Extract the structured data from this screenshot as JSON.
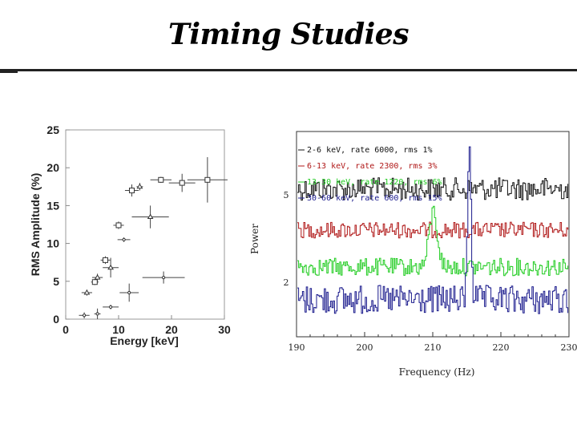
{
  "page": {
    "title": "Timing  Studies"
  },
  "chart_data": [
    {
      "type": "scatter",
      "xlabel": "Energy [keV]",
      "ylabel": "RMS Amplitude (%)",
      "xlim": [
        0,
        30
      ],
      "ylim": [
        0,
        25
      ],
      "xticks": [
        0,
        10,
        20,
        30
      ],
      "yticks": [
        0,
        5,
        10,
        15,
        20,
        25
      ],
      "grid": false,
      "series": [
        {
          "marker": "open-square",
          "points": [
            {
              "x": 5.5,
              "y": 4.9,
              "xerr": 0.7,
              "yerr": 0.4
            },
            {
              "x": 7.5,
              "y": 7.8,
              "xerr": 0.9,
              "yerr": 0.5
            },
            {
              "x": 10,
              "y": 12.4,
              "xerr": 1.0,
              "yerr": 0.5
            },
            {
              "x": 12.5,
              "y": 17.0,
              "xerr": 1.3,
              "yerr": 0.8
            },
            {
              "x": 18,
              "y": 18.4,
              "xerr": 2.0,
              "yerr": 0.4
            },
            {
              "x": 22,
              "y": 18.0,
              "xerr": 2.5,
              "yerr": 1.2
            },
            {
              "x": 26.8,
              "y": 18.4,
              "xerr": 3.8,
              "yerr": 3.0
            }
          ]
        },
        {
          "marker": "triangle",
          "points": [
            {
              "x": 4,
              "y": 3.5,
              "xerr": 1.0,
              "yerr": 0.4
            },
            {
              "x": 6,
              "y": 5.5,
              "xerr": 1.0,
              "yerr": 0.5
            },
            {
              "x": 8.5,
              "y": 6.8,
              "xerr": 1.5,
              "yerr": 1.3
            },
            {
              "x": 16,
              "y": 13.5,
              "xerr": 3.5,
              "yerr": 1.5
            },
            {
              "x": 14,
              "y": 17.5,
              "xerr": 0.6,
              "yerr": 0.5
            }
          ]
        },
        {
          "marker": "small-dot",
          "points": [
            {
              "x": 3.5,
              "y": 0.5,
              "xerr": 1.0,
              "yerr": 0.4
            },
            {
              "x": 6,
              "y": 0.7,
              "xerr": 0.6,
              "yerr": 0.7
            },
            {
              "x": 8.5,
              "y": 1.6,
              "xerr": 1.5,
              "yerr": 0.3
            },
            {
              "x": 12,
              "y": 3.5,
              "xerr": 1.8,
              "yerr": 1.2
            },
            {
              "x": 11,
              "y": 10.5,
              "xerr": 1.2,
              "yerr": 0.3
            },
            {
              "x": 18.5,
              "y": 5.5,
              "xerr": 4.0,
              "yerr": 0.8
            }
          ]
        }
      ]
    },
    {
      "type": "line",
      "xlabel": "Frequency (Hz)",
      "ylabel": "Power",
      "xlim": [
        190,
        230
      ],
      "xticks": [
        190,
        200,
        210,
        220,
        230
      ],
      "yticks": [
        2,
        5
      ],
      "grid": false,
      "legend_position": "top-left",
      "series": [
        {
          "name": "2-6 keV, rate 6000, rms 1%",
          "color": "#111111",
          "baseline": 0.28
        },
        {
          "name": "6-13 keV, rate 2300, rms 3%",
          "color": "#b01818",
          "baseline": 0.48
        },
        {
          "name": "13-30 keV, rate 1220, rms 6%",
          "color": "#22cc22",
          "baseline": 0.66,
          "peaks": [
            {
              "x": 210,
              "height": 0.27
            }
          ]
        },
        {
          "name": "30-60 keV, rate 600, rms 15%",
          "color": "#1a1a8c",
          "baseline": 0.82,
          "peaks": [
            {
              "x": 215.3,
              "height": 0.78
            }
          ]
        }
      ]
    }
  ]
}
